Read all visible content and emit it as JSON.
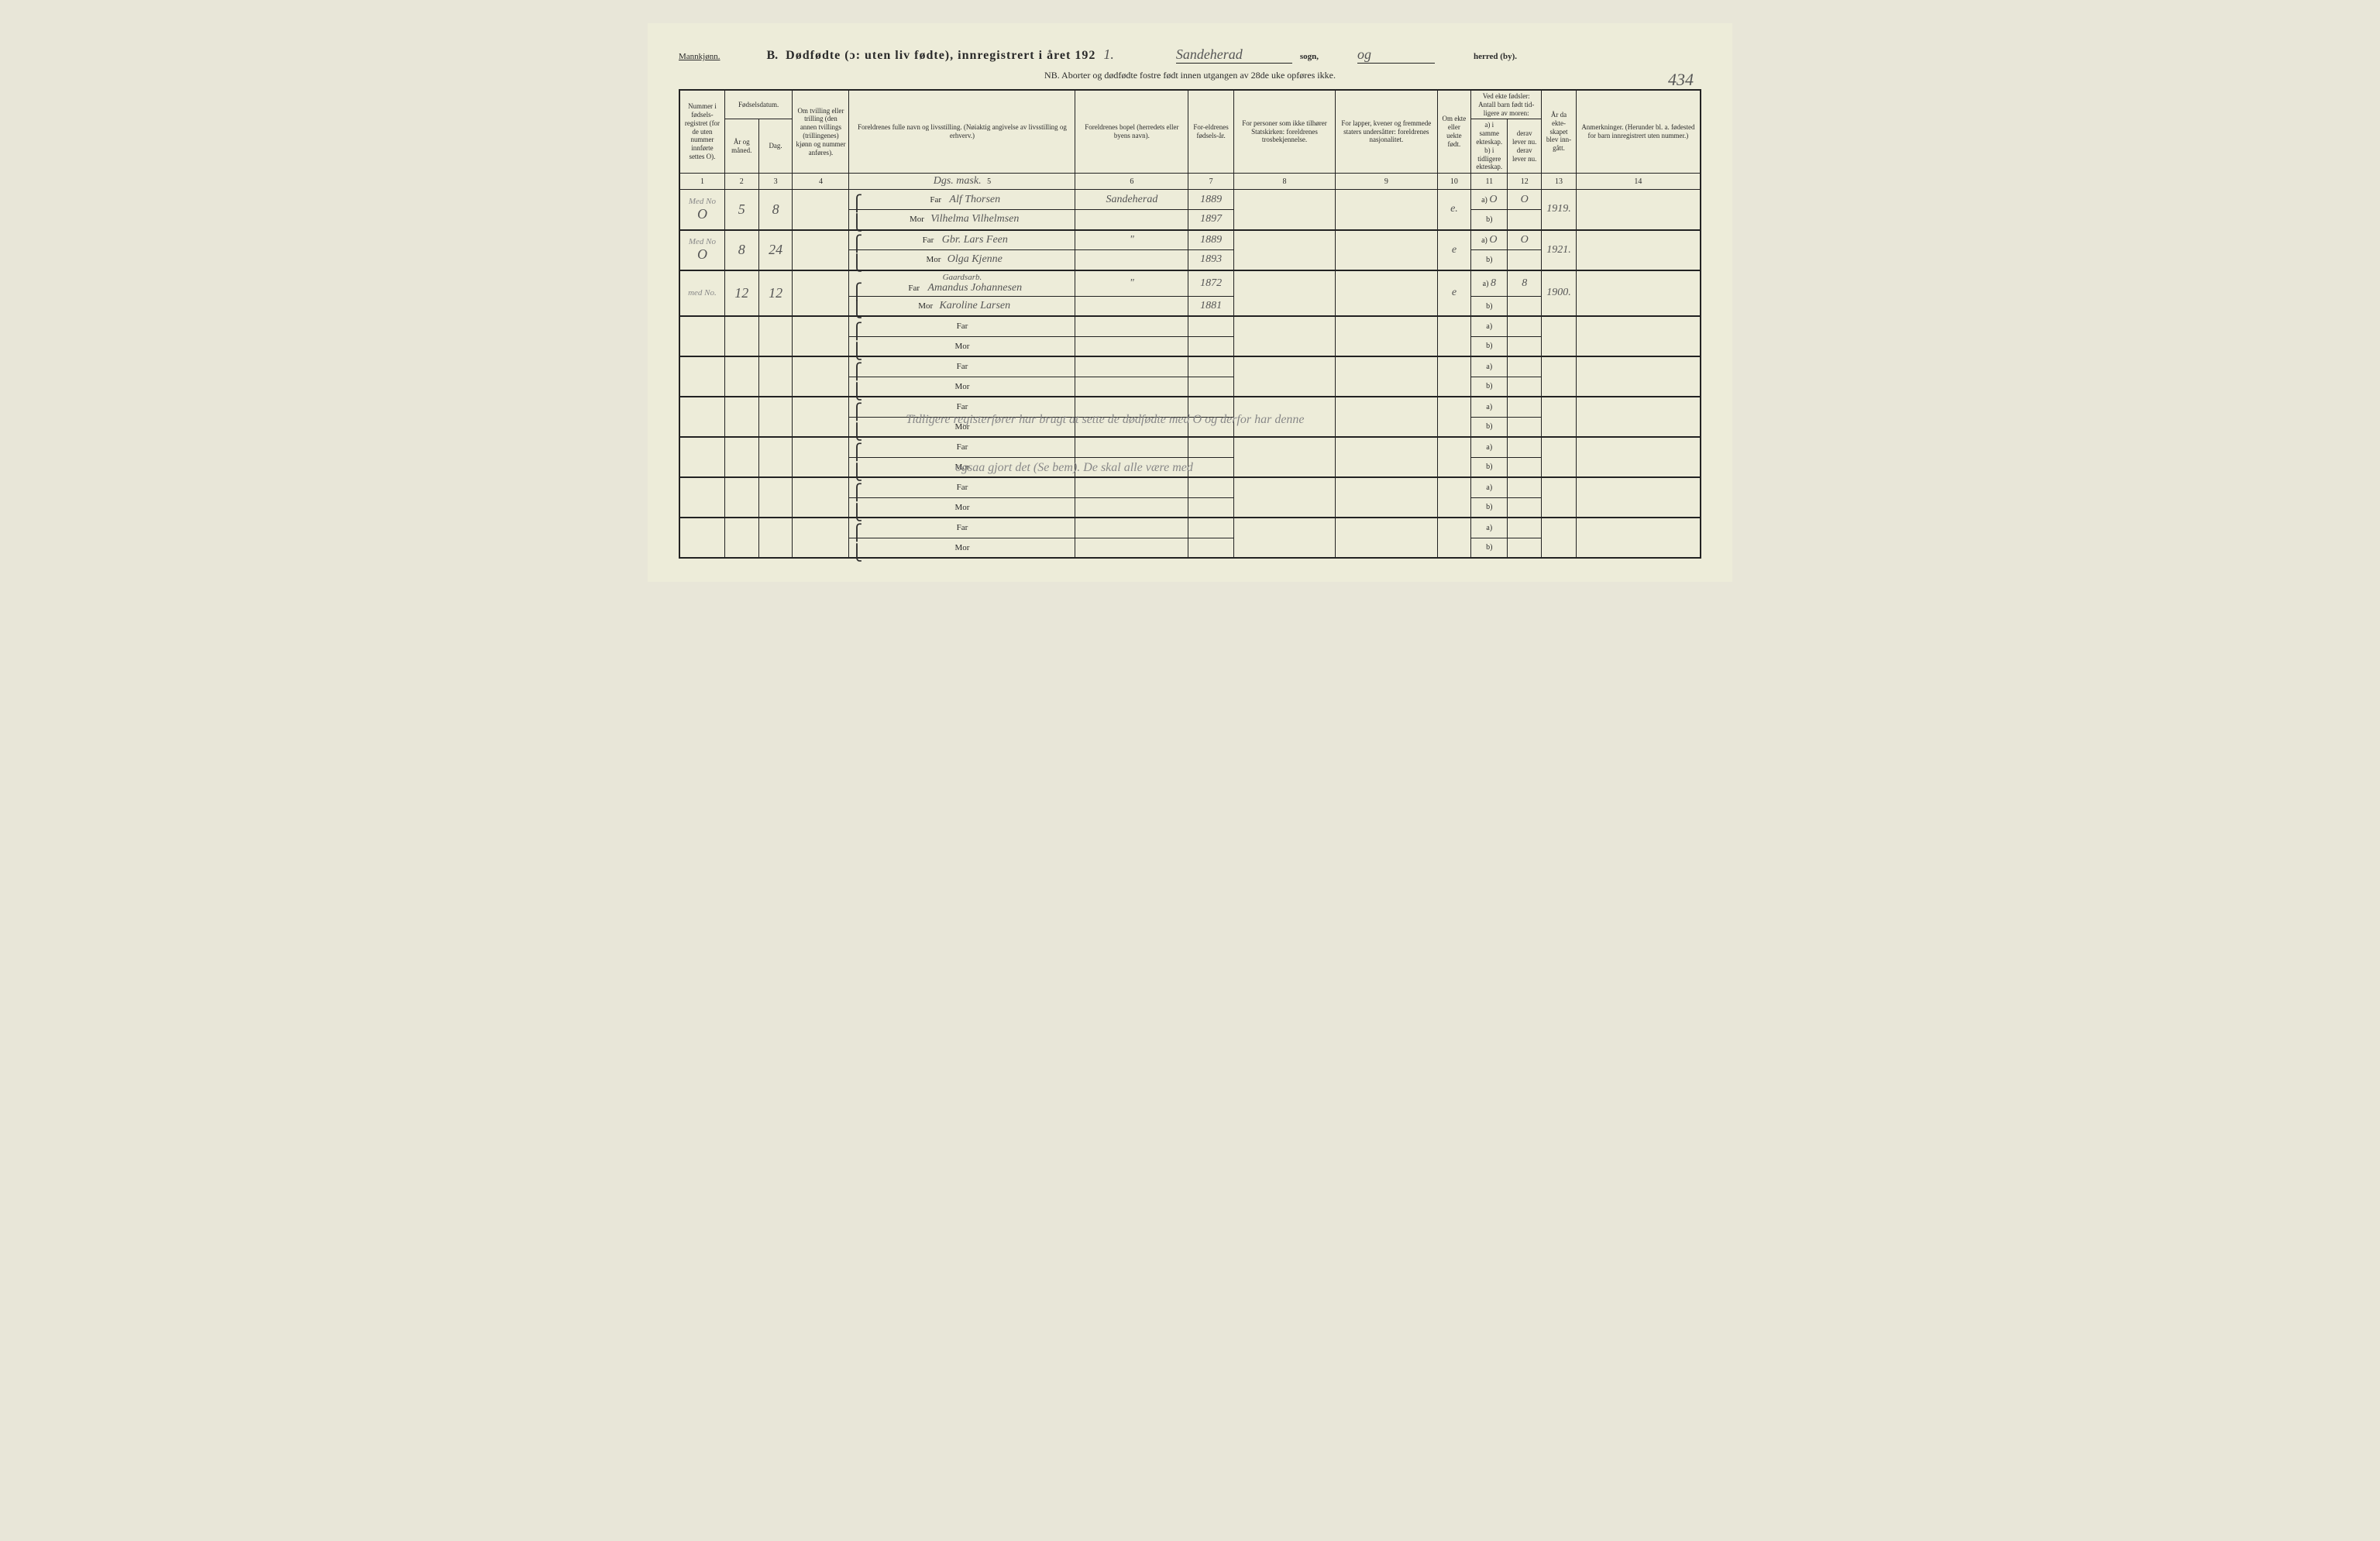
{
  "header": {
    "gender": "Mannkjønn.",
    "section_letter": "B.",
    "title": "Dødfødte (ɔ: uten liv fødte), innregistrert i året 192",
    "year_suffix": "1.",
    "sogn_value": "Sandeherad",
    "sogn_label": "sogn,",
    "herred_value": "og",
    "herred_label": "herred (by).",
    "page_number": "434",
    "nb_text": "NB. Aborter og dødfødte fostre født innen utgangen av 28de uke opføres ikke."
  },
  "columns": {
    "c1": "Nummer i fødsels-registret (for de uten nummer innførte settes O).",
    "c2_top": "Fødselsdatum.",
    "c2": "År og måned.",
    "c3": "Dag.",
    "c4": "Om tvilling eller trilling (den annen tvillings (trillingenes) kjønn og nummer anføres).",
    "c5": "Foreldrenes fulle navn og livsstilling. (Nøiaktig angivelse av livsstilling og erhverv.)",
    "c6": "Foreldrenes bopel (herredets eller byens navn).",
    "c7": "For-eldrenes fødsels-år.",
    "c8": "For personer som ikke tilhører Statskirken: foreldrenes trosbekjennelse.",
    "c9": "For lapper, kvener og fremmede staters undersåtter: foreldrenes nasjonalitet.",
    "c10": "Om ekte eller uekte født.",
    "c11_top": "Ved ekte fødsler: Antall barn født tid-ligere av moren:",
    "c11": "a) i samme ekteskap.",
    "c12": "derav lever nu.",
    "c11b": "b) i tidligere ekteskap.",
    "c12b": "derav lever nu.",
    "c13": "År da ekte-skapet blev inn-gått.",
    "c14": "Anmerkninger. (Herunder bl. a. fødested for barn innregistrert uten nummer.)"
  },
  "col_nums": [
    "1",
    "2",
    "3",
    "4",
    "5",
    "6",
    "7",
    "8",
    "9",
    "10",
    "11",
    "12",
    "13",
    "14"
  ],
  "far_label": "Far",
  "mor_label": "Mor",
  "ab_a": "a)",
  "ab_b": "b)",
  "occupation_note": "Dgs. mask.",
  "rows": [
    {
      "margin": "Med No",
      "num": "O",
      "month": "5",
      "day": "8",
      "twin": "",
      "far": "Alf Thorsen",
      "mor": "Vilhelma Vilhelmsen",
      "bopel": "Sandeherad",
      "far_year": "1889",
      "mor_year": "1897",
      "c8": "",
      "c9": "",
      "ekte": "e.",
      "a_val": "O",
      "a_lever": "O",
      "b_val": "",
      "b_lever": "",
      "year_married": "1919.",
      "remarks": ""
    },
    {
      "margin": "Med No",
      "num": "O",
      "month": "8",
      "day": "24",
      "twin": "",
      "far": "Gbr. Lars Feen",
      "mor": "Olga Kjenne",
      "bopel": "\"",
      "far_year": "1889",
      "mor_year": "1893",
      "c8": "",
      "c9": "",
      "ekte": "e",
      "a_val": "O",
      "a_lever": "O",
      "b_val": "",
      "b_lever": "",
      "year_married": "1921.",
      "remarks": ""
    },
    {
      "margin": "med No.",
      "num": "",
      "month": "12",
      "day": "12",
      "twin": "",
      "far_prefix": "Gaardsarb.",
      "far": "Amandus Johannesen",
      "mor": "Karoline Larsen",
      "bopel": "\"",
      "far_year": "1872",
      "mor_year": "1881",
      "c8": "",
      "c9": "",
      "ekte": "e",
      "a_val": "8",
      "a_lever": "8",
      "b_val": "",
      "b_lever": "",
      "year_married": "1900.",
      "remarks": ""
    }
  ],
  "empty_rows_before_note": 2,
  "handwritten_note_line1": "Tidligere registerfører har brugt at sette de dødfødte med O og derfor har denne",
  "handwritten_note_line2": "ogsaa gjort det (Se bem). De skal alle være med",
  "empty_rows_after_note": 4,
  "styling": {
    "page_bg": "#edecd9",
    "body_bg": "#e8e6d8",
    "border_color": "#222222",
    "text_color": "#2a2a2a",
    "handwriting_color": "#555555",
    "faint_handwriting_color": "#888888"
  }
}
